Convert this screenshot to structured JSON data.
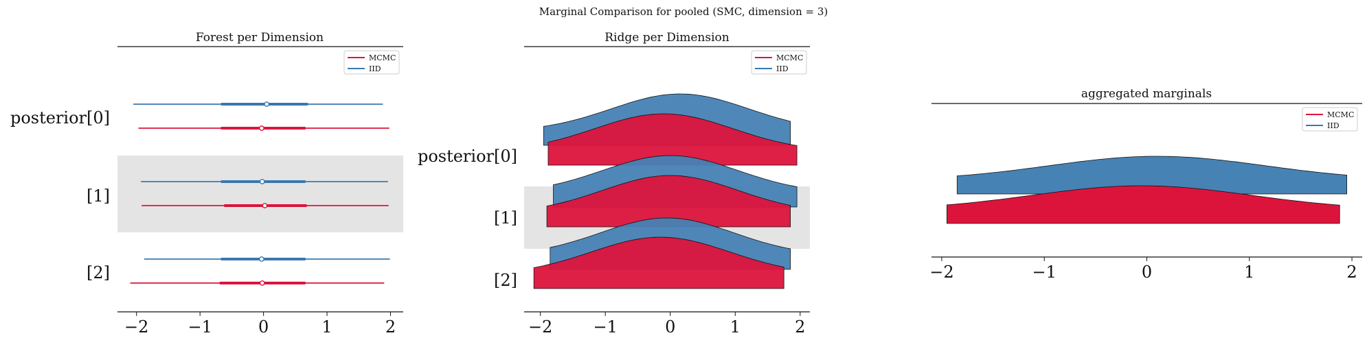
{
  "suptitle": "Marginal Comparison for pooled (SMC, dimension = 3)",
  "colors": {
    "mcmc": "#dc143c",
    "iid": "#3a78b0",
    "iid_fill": "#4682b4",
    "band": "#e4e4e4"
  },
  "legend": [
    "MCMC",
    "IID"
  ],
  "chart_data": [
    {
      "type": "forest",
      "title": "Forest per Dimension",
      "row_labels": [
        "posterior[0]",
        "[1]",
        "[2]"
      ],
      "xlim": [
        -2.3,
        2.2
      ],
      "xticks": [
        -2,
        -1,
        0,
        1,
        2
      ],
      "legend_placement": "top-right",
      "series": [
        {
          "name": "IID",
          "rows": [
            {
              "low": -2.05,
              "q25": -0.67,
              "median": 0.05,
              "q75": 0.7,
              "high": 1.88
            },
            {
              "low": -1.93,
              "q25": -0.67,
              "median": -0.02,
              "q75": 0.66,
              "high": 1.96
            },
            {
              "low": -1.88,
              "q25": -0.67,
              "median": -0.03,
              "q75": 0.66,
              "high": 1.99
            }
          ]
        },
        {
          "name": "MCMC",
          "rows": [
            {
              "low": -1.97,
              "q25": -0.67,
              "median": -0.03,
              "q75": 0.66,
              "high": 1.98
            },
            {
              "low": -1.92,
              "q25": -0.62,
              "median": 0.02,
              "q75": 0.68,
              "high": 1.97
            },
            {
              "low": -2.1,
              "q25": -0.69,
              "median": -0.02,
              "q75": 0.66,
              "high": 1.9
            }
          ]
        }
      ]
    },
    {
      "type": "ridgeline",
      "title": "Ridge per Dimension",
      "row_labels": [
        "posterior[0]",
        "[1]",
        "[2]"
      ],
      "xlim": [
        -2.25,
        2.15
      ],
      "xticks": [
        -2,
        -1,
        0,
        1,
        2
      ],
      "legend_placement": "top-right",
      "series": [
        {
          "name": "IID",
          "rows": [
            {
              "min": -1.95,
              "max": 1.85,
              "mode": 0.15
            },
            {
              "min": -1.8,
              "max": 1.95,
              "mode": 0.0
            },
            {
              "min": -1.85,
              "max": 1.85,
              "mode": -0.05
            }
          ]
        },
        {
          "name": "MCMC",
          "rows": [
            {
              "min": -1.88,
              "max": 1.95,
              "mode": -0.1
            },
            {
              "min": -1.9,
              "max": 1.85,
              "mode": 0.0
            },
            {
              "min": -2.1,
              "max": 1.75,
              "mode": -0.15
            }
          ]
        }
      ]
    },
    {
      "type": "ridgeline",
      "title": "aggregated marginals",
      "xlim": [
        -2.1,
        2.1
      ],
      "xticks": [
        -2,
        -1,
        0,
        1,
        2
      ],
      "legend_placement": "top-right",
      "series": [
        {
          "name": "IID",
          "min": -1.85,
          "max": 1.95,
          "mode": 0.1
        },
        {
          "name": "MCMC",
          "min": -1.95,
          "max": 1.88,
          "mode": -0.05
        }
      ]
    }
  ]
}
